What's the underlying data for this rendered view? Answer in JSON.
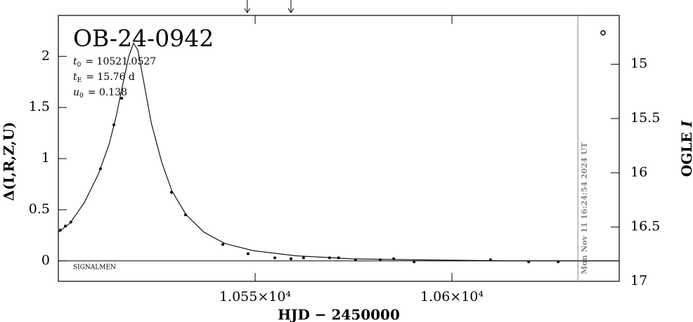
{
  "chart_data": {
    "type": "scatter",
    "title": "OB-24-0942",
    "parameters": [
      {
        "symbol": "t",
        "subscript": "0",
        "value": "= 10521.0527"
      },
      {
        "symbol": "t",
        "subscript": "E",
        "value": "= 15.76  d"
      },
      {
        "symbol": "u",
        "subscript": "0",
        "value": "= 0.138"
      }
    ],
    "footnote": "SIGNALMEN",
    "timestamp": "Mon Nov 11 16:24:54 2024 UT",
    "timestamp_x": 10632.0,
    "arrows_x": [
      10548.0,
      10559.1
    ],
    "x_label": "HJD − 2450000",
    "y_label": "Δ(I,R,Z,U)",
    "y2_label": [
      "OGLE",
      "I"
    ],
    "xlim": [
      10500,
      10642.5
    ],
    "xticks": [
      {
        "value": 10550,
        "label": "1.055×10⁴"
      },
      {
        "value": 10600,
        "label": "1.06×10⁴"
      }
    ],
    "ylim": [
      -0.2,
      2.4
    ],
    "yticks": [
      0,
      0.5,
      1,
      1.5,
      2
    ],
    "y2lim": [
      17,
      14.55
    ],
    "y2ticks": [
      15,
      15.5,
      16,
      16.5,
      17
    ],
    "baseline": 0,
    "color": "#000000",
    "points": {
      "x": [
        10500.5,
        10501.8,
        10503.2,
        10510.7,
        10514.1,
        10516.1,
        10528.75,
        10532.3,
        10541.8,
        10548.2,
        10555.0,
        10559.1,
        10562.3,
        10568.9,
        10571.2,
        10575.5,
        10581.8,
        10585.2,
        10590.4,
        10609.8,
        10619.5,
        10627.0
      ],
      "values": [
        0.3,
        0.34,
        0.38,
        0.9,
        1.33,
        1.59,
        0.67,
        0.45,
        0.16,
        0.07,
        0.03,
        0.02,
        0.03,
        0.03,
        0.03,
        0.01,
        0.01,
        0.02,
        -0.01,
        0.01,
        -0.01,
        -0.01
      ]
    },
    "open_points": {
      "x": [
        10638.4
      ],
      "values": [
        2.23
      ]
    },
    "curve": {
      "x": [
        10500,
        10503,
        10506.6,
        10510.2,
        10512.9,
        10514.6,
        10516.4,
        10517.9,
        10519.1,
        10520.2,
        10521.8,
        10523.6,
        10526.3,
        10528.9,
        10532.5,
        10537.0,
        10542.3,
        10549.5,
        10560.2,
        10574.5,
        10592.3,
        10613.8,
        10642.5
      ],
      "values": [
        0.28,
        0.37,
        0.57,
        0.85,
        1.14,
        1.4,
        1.73,
        2.0,
        2.13,
        2.06,
        1.73,
        1.35,
        0.96,
        0.68,
        0.45,
        0.28,
        0.17,
        0.1,
        0.05,
        0.02,
        0.01,
        0.0,
        0.0
      ]
    }
  }
}
